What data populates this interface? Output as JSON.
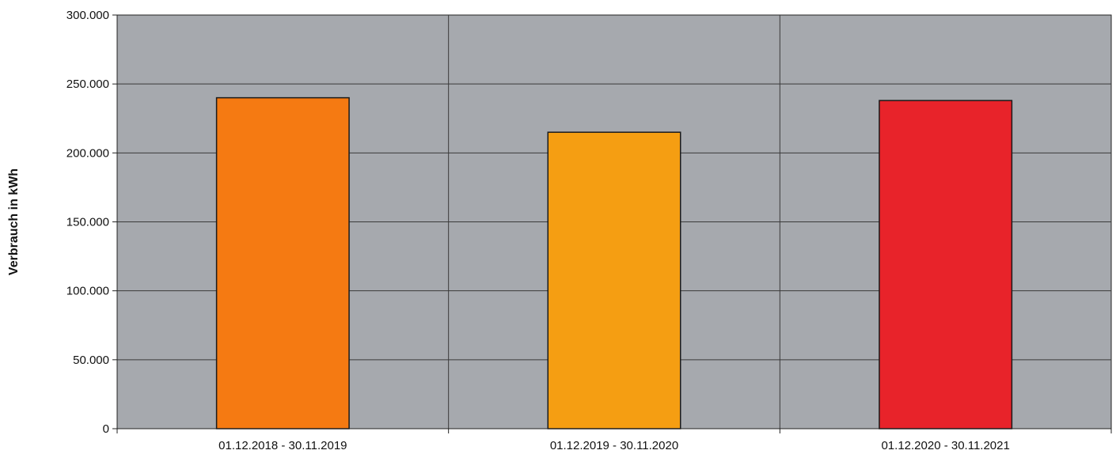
{
  "chart_data": {
    "type": "bar",
    "title": "",
    "xlabel": "",
    "ylabel": "Verbrauch in kWh",
    "categories": [
      "01.12.2018 - 30.11.2019",
      "01.12.2019 - 30.11.2020",
      "01.12.2020 - 30.11.2021"
    ],
    "values": [
      240000,
      215000,
      238000
    ],
    "bar_colors": [
      "#f57a12",
      "#f59e12",
      "#e8232a"
    ],
    "plot_background": "#a6a9ae",
    "ylim": [
      0,
      300000
    ],
    "y_ticks": [
      0,
      50000,
      100000,
      150000,
      200000,
      250000,
      300000
    ],
    "y_tick_labels": [
      "0",
      "50.000",
      "100.000",
      "150.000",
      "200.000",
      "250.000",
      "300.000"
    ],
    "grid": true,
    "legend": "none"
  }
}
